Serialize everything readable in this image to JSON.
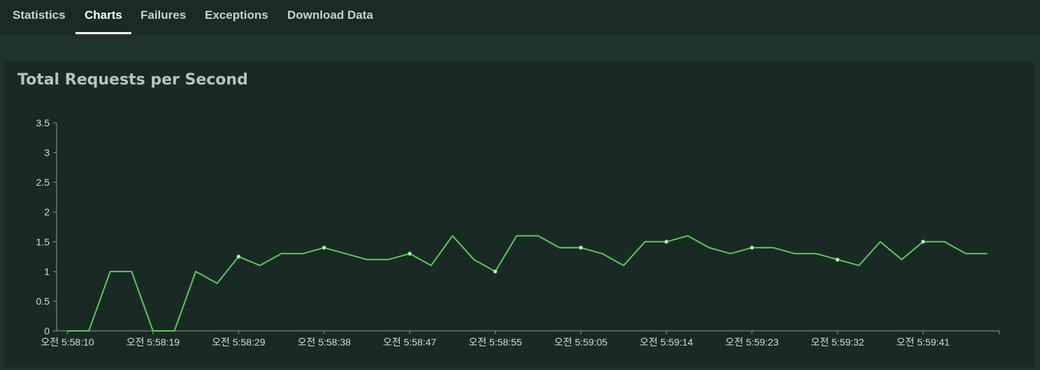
{
  "tabs": [
    {
      "label": "Statistics",
      "active": false
    },
    {
      "label": "Charts",
      "active": true
    },
    {
      "label": "Failures",
      "active": false
    },
    {
      "label": "Exceptions",
      "active": false
    },
    {
      "label": "Download Data",
      "active": false
    }
  ],
  "card": {
    "title": "Total Requests per Second"
  },
  "colors": {
    "line": "#5fc65f",
    "axis": "#8a9a93",
    "marker": "#e8f5e8"
  },
  "chart_data": {
    "type": "line",
    "title": "Total Requests per Second",
    "xlabel": "",
    "ylabel": "",
    "ylim": [
      0,
      3.5
    ],
    "yticks": [
      "0",
      "0.5",
      "1",
      "1.5",
      "2",
      "2.5",
      "3",
      "3.5"
    ],
    "xtick_labels": [
      "오전 5:58:10",
      "오전 5:58:19",
      "오전 5:58:29",
      "오전 5:58:38",
      "오전 5:58:47",
      "오전 5:58:55",
      "오전 5:59:05",
      "오전 5:59:14",
      "오전 5:59:23",
      "오전 5:59:32",
      "오전 5:59:41"
    ],
    "grid": false,
    "series": [
      {
        "values": [
          0,
          0,
          1,
          1,
          0,
          0,
          1,
          0.8,
          1.25,
          1.1,
          1.3,
          1.3,
          1.4,
          1.3,
          1.2,
          1.2,
          1.3,
          1.1,
          1.6,
          1.2,
          1.0,
          1.6,
          1.6,
          1.4,
          1.4,
          1.3,
          1.1,
          1.5,
          1.5,
          1.6,
          1.4,
          1.3,
          1.4,
          1.4,
          1.3,
          1.3,
          1.2,
          1.1,
          1.5,
          1.2,
          1.5,
          1.5,
          1.3,
          1.3
        ],
        "markers_at": [
          8,
          12,
          16,
          20,
          24,
          28,
          32,
          36,
          40
        ]
      }
    ]
  }
}
